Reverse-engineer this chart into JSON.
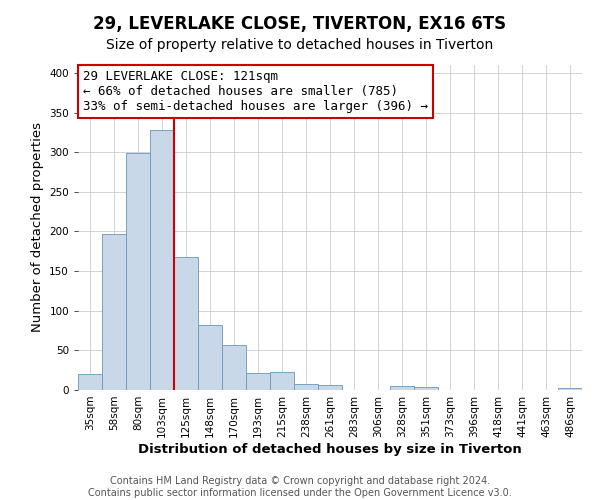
{
  "title": "29, LEVERLAKE CLOSE, TIVERTON, EX16 6TS",
  "subtitle": "Size of property relative to detached houses in Tiverton",
  "xlabel": "Distribution of detached houses by size in Tiverton",
  "ylabel": "Number of detached properties",
  "footer_lines": [
    "Contains HM Land Registry data © Crown copyright and database right 2024.",
    "Contains public sector information licensed under the Open Government Licence v3.0."
  ],
  "bin_labels": [
    "35sqm",
    "58sqm",
    "80sqm",
    "103sqm",
    "125sqm",
    "148sqm",
    "170sqm",
    "193sqm",
    "215sqm",
    "238sqm",
    "261sqm",
    "283sqm",
    "306sqm",
    "328sqm",
    "351sqm",
    "373sqm",
    "396sqm",
    "418sqm",
    "441sqm",
    "463sqm",
    "486sqm"
  ],
  "bar_heights": [
    20,
    197,
    299,
    328,
    168,
    82,
    57,
    21,
    23,
    8,
    6,
    0,
    0,
    5,
    4,
    0,
    0,
    0,
    0,
    0,
    3
  ],
  "bar_color": "#c8d8e8",
  "bar_edgecolor": "#6699bb",
  "annotation_box_text": "29 LEVERLAKE CLOSE: 121sqm\n← 66% of detached houses are smaller (785)\n33% of semi-detached houses are larger (396) →",
  "vline_color": "#cc0000",
  "vline_x_index": 4,
  "ylim": [
    0,
    410
  ],
  "yticks": [
    0,
    50,
    100,
    150,
    200,
    250,
    300,
    350,
    400
  ],
  "background_color": "#ffffff",
  "grid_color": "#cccccc",
  "title_fontsize": 12,
  "subtitle_fontsize": 10,
  "axis_label_fontsize": 9.5,
  "tick_fontsize": 7.5,
  "annotation_fontsize": 9,
  "footer_fontsize": 7
}
